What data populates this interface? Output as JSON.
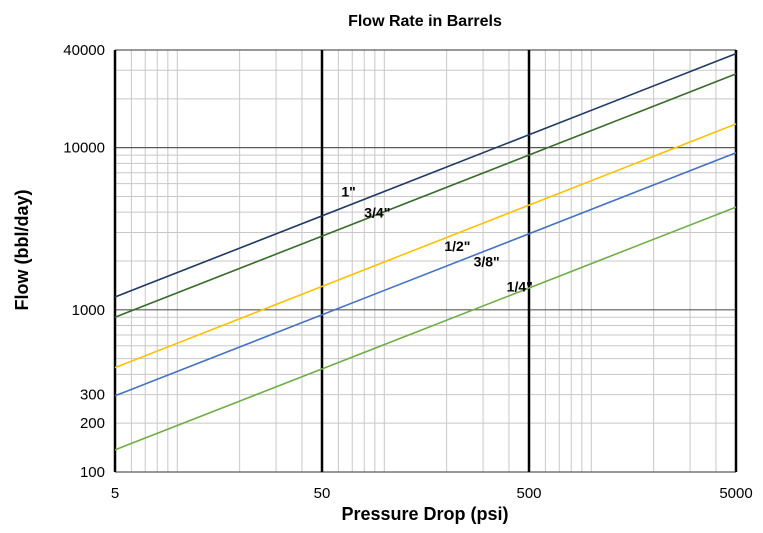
{
  "chart_data": {
    "type": "line",
    "title": "Flow Rate in Barrels",
    "xlabel": "Pressure Drop (psi)",
    "ylabel": "Flow (bbl/day)",
    "x_scale": "log",
    "y_scale": "log",
    "xlim": [
      5,
      5000
    ],
    "ylim": [
      100,
      40000
    ],
    "x_ticks": [
      5,
      50,
      500,
      5000
    ],
    "x_tick_labels": [
      "5",
      "50",
      "500",
      "5000"
    ],
    "y_ticks": [
      100,
      200,
      300,
      1000,
      10000,
      40000
    ],
    "y_tick_labels": [
      "100",
      "200",
      "300",
      "1000",
      "10000",
      "40000"
    ],
    "grid": true,
    "series": [
      {
        "name": "1\"",
        "color": "#1f3864",
        "points": [
          [
            5,
            1200
          ],
          [
            5000,
            38000
          ]
        ],
        "label_at": [
          62,
          5000
        ]
      },
      {
        "name": "3/4\"",
        "color": "#3a6b2a",
        "points": [
          [
            5,
            900
          ],
          [
            5000,
            28500
          ]
        ],
        "label_at": [
          80,
          3700
        ]
      },
      {
        "name": "1/2\"",
        "color": "#ffc000",
        "points": [
          [
            5,
            440
          ],
          [
            5000,
            14000
          ]
        ],
        "label_at": [
          195,
          2300
        ]
      },
      {
        "name": "3/8\"",
        "color": "#4472c4",
        "points": [
          [
            5,
            295
          ],
          [
            5000,
            9300
          ]
        ],
        "label_at": [
          270,
          1850
        ]
      },
      {
        "name": "1/4\"",
        "color": "#70ad47",
        "points": [
          [
            5,
            137
          ],
          [
            5000,
            4300
          ]
        ],
        "label_at": [
          390,
          1300
        ]
      }
    ]
  }
}
